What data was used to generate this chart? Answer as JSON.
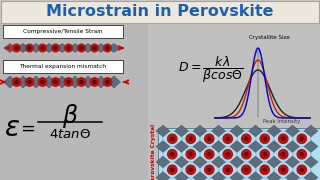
{
  "title": "Microstrain in Perovskite",
  "title_color": "#1a5fb4",
  "title_fontsize": 11.5,
  "bg_color": "#c8c8c8",
  "title_bg": "#ede8dc",
  "title_border": "#b0a090",
  "label_compressive": "Compressive/Tensile Strain",
  "label_thermal": "Thermal expansion mismatch",
  "label_crystallite": "Crystallite Size",
  "label_peak": "Peak Intensity",
  "label_perovskite": "Perovskite Crystal",
  "curve_colors": [
    "#0000cc",
    "#cc2200",
    "#222222"
  ],
  "arrow_color": "#dd0000",
  "lattice_circle_color": "#bb1111",
  "lattice_diamond_color": "#5a6e80",
  "lattice_bg": "#b0ddef",
  "lattice_line": "#5090a0",
  "dot_color": "#550000",
  "white": "#ffffff",
  "box_border": "#444444",
  "gray_mid": "#909090"
}
